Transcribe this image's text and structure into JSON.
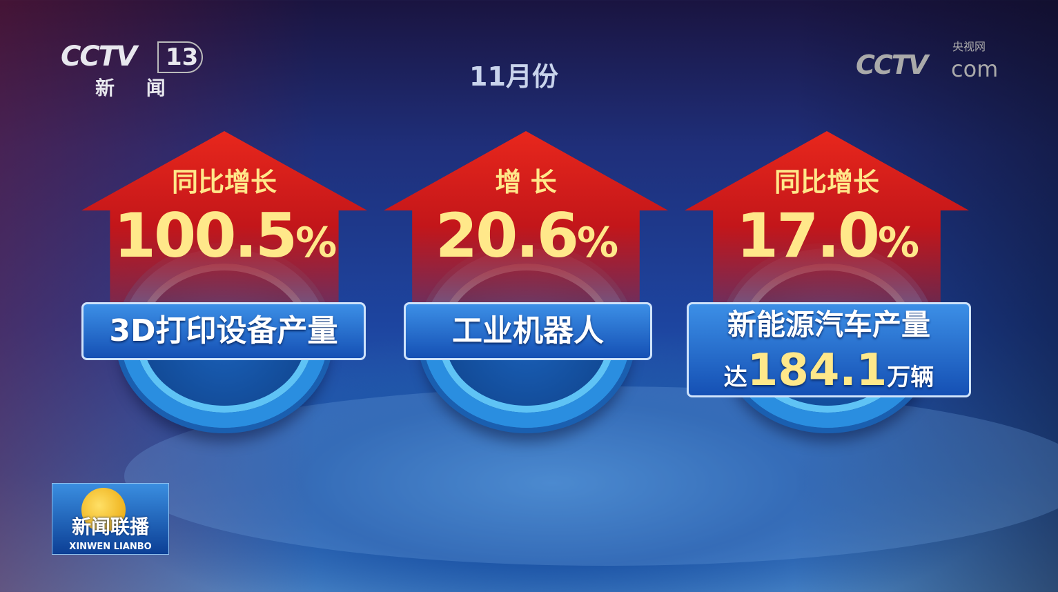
{
  "logo_channel": {
    "brand": "CCTV",
    "channel": "13",
    "name": "新 闻"
  },
  "logo_web": {
    "brand": "CCTV",
    "cn": "央视网",
    "com": "com"
  },
  "title": "11月份",
  "cards": [
    {
      "heading": "同比增长",
      "value": "100.5",
      "unit": "%",
      "label": "3D打印设备产量"
    },
    {
      "heading": "增 长",
      "value": "20.6",
      "unit": "%",
      "label": "工业机器人"
    },
    {
      "heading": "同比增长",
      "value": "17.0",
      "unit": "%",
      "label": "新能源汽车产量",
      "sub_prefix": "达",
      "sub_value": "184.1",
      "sub_unit": "万辆"
    }
  ],
  "program_logo": {
    "cn": "新闻联播",
    "en": "XINWEN LIANBO"
  },
  "colors": {
    "arrow": "#d81e1a",
    "value": "#ffe88a",
    "label_box": "#1f66c8"
  }
}
